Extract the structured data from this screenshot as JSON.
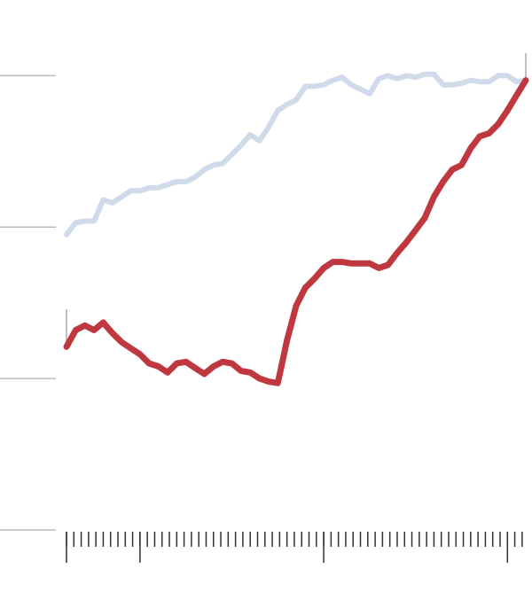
{
  "chart_data": {
    "type": "line",
    "x": [
      0,
      1.25,
      2.5,
      3.75,
      5,
      6.25,
      7.5,
      8.75,
      10,
      11.25,
      12.5,
      13.75,
      15,
      16.25,
      17.5,
      18.75,
      20,
      21.25,
      22.5,
      23.75,
      25,
      26.25,
      27.5,
      28.75,
      30,
      31.25,
      32.5,
      33.75,
      35,
      36.25,
      37.5,
      38.75,
      40,
      41.25,
      42.5,
      43.75,
      45,
      46.25,
      47.5,
      48.75,
      50,
      51.25,
      52.5,
      53.75,
      55,
      56.25,
      57.5,
      58.75,
      60,
      61.25,
      62.5
    ],
    "series": [
      {
        "color": "#cfdbea",
        "values": [
          195,
          203,
          204,
          204,
          218,
          216,
          220,
          224,
          224,
          226,
          226,
          228,
          230,
          230,
          233,
          238,
          241,
          242,
          248,
          254,
          261,
          257,
          266,
          277,
          281,
          284,
          293,
          293,
          294,
          297,
          299,
          294,
          291,
          288,
          298,
          300,
          298,
          300,
          299,
          301,
          301,
          294,
          294,
          295,
          297,
          296,
          296,
          300,
          300,
          296,
          297
        ]
      },
      {
        "color": "#c0383f",
        "values": [
          121,
          132,
          135,
          132,
          137,
          130,
          124,
          120,
          116,
          110,
          108,
          104,
          110,
          111,
          107,
          103,
          108,
          111,
          110,
          105,
          104,
          100,
          98,
          97,
          125,
          148,
          160,
          166,
          173,
          177,
          177,
          176,
          176,
          176,
          173,
          175,
          183,
          190,
          198,
          206,
          220,
          230,
          238,
          241,
          252,
          260,
          262,
          268,
          277,
          287,
          297
        ]
      }
    ],
    "xlim": [
      0,
      62.5
    ],
    "ylim": [
      0,
      350
    ],
    "yticks": [
      0,
      100,
      200,
      300
    ],
    "xticks": [
      0,
      1,
      2,
      3,
      4,
      5,
      6,
      7,
      8,
      9,
      10,
      11,
      12,
      13,
      14,
      15,
      16,
      17,
      18,
      19,
      20,
      21,
      22,
      23,
      24,
      25,
      26,
      27,
      28,
      29,
      30,
      31,
      32,
      33,
      34,
      35,
      36,
      37,
      38,
      39,
      40,
      41,
      42,
      43,
      44,
      45,
      46,
      47,
      48,
      49,
      50,
      51,
      52,
      53,
      54,
      55,
      56,
      57,
      58,
      59,
      60,
      61,
      62
    ],
    "xticks_major": [
      0,
      10,
      35,
      60
    ],
    "grid": true
  }
}
